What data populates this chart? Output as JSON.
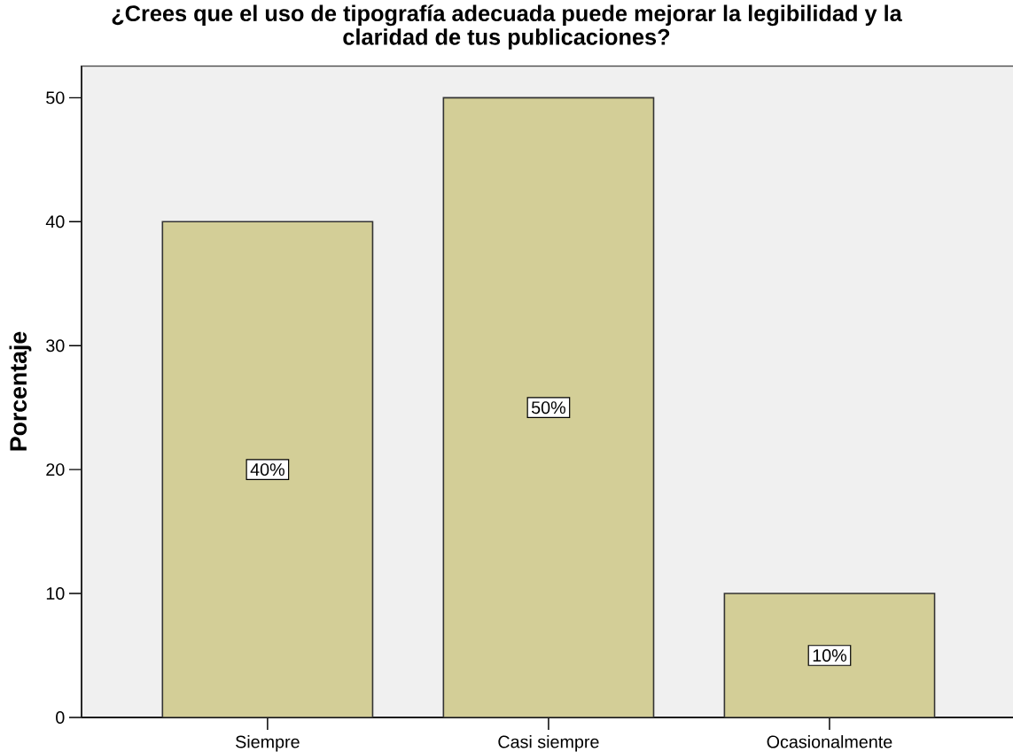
{
  "chart_data": {
    "type": "bar",
    "title": "¿Crees que el uso de tipografía adecuada puede mejorar la legibilidad y la claridad de tus publicaciones?",
    "ylabel": "Porcentaje",
    "categories": [
      "Siempre",
      "Casi siempre",
      "Ocasionalmente"
    ],
    "values": [
      40,
      50,
      10
    ],
    "value_labels": [
      "40%",
      "50%",
      "10%"
    ],
    "color": "#d3ce97",
    "ylim": [
      0,
      52.6
    ],
    "yticks": [
      0,
      10,
      20,
      30,
      40,
      50
    ]
  }
}
